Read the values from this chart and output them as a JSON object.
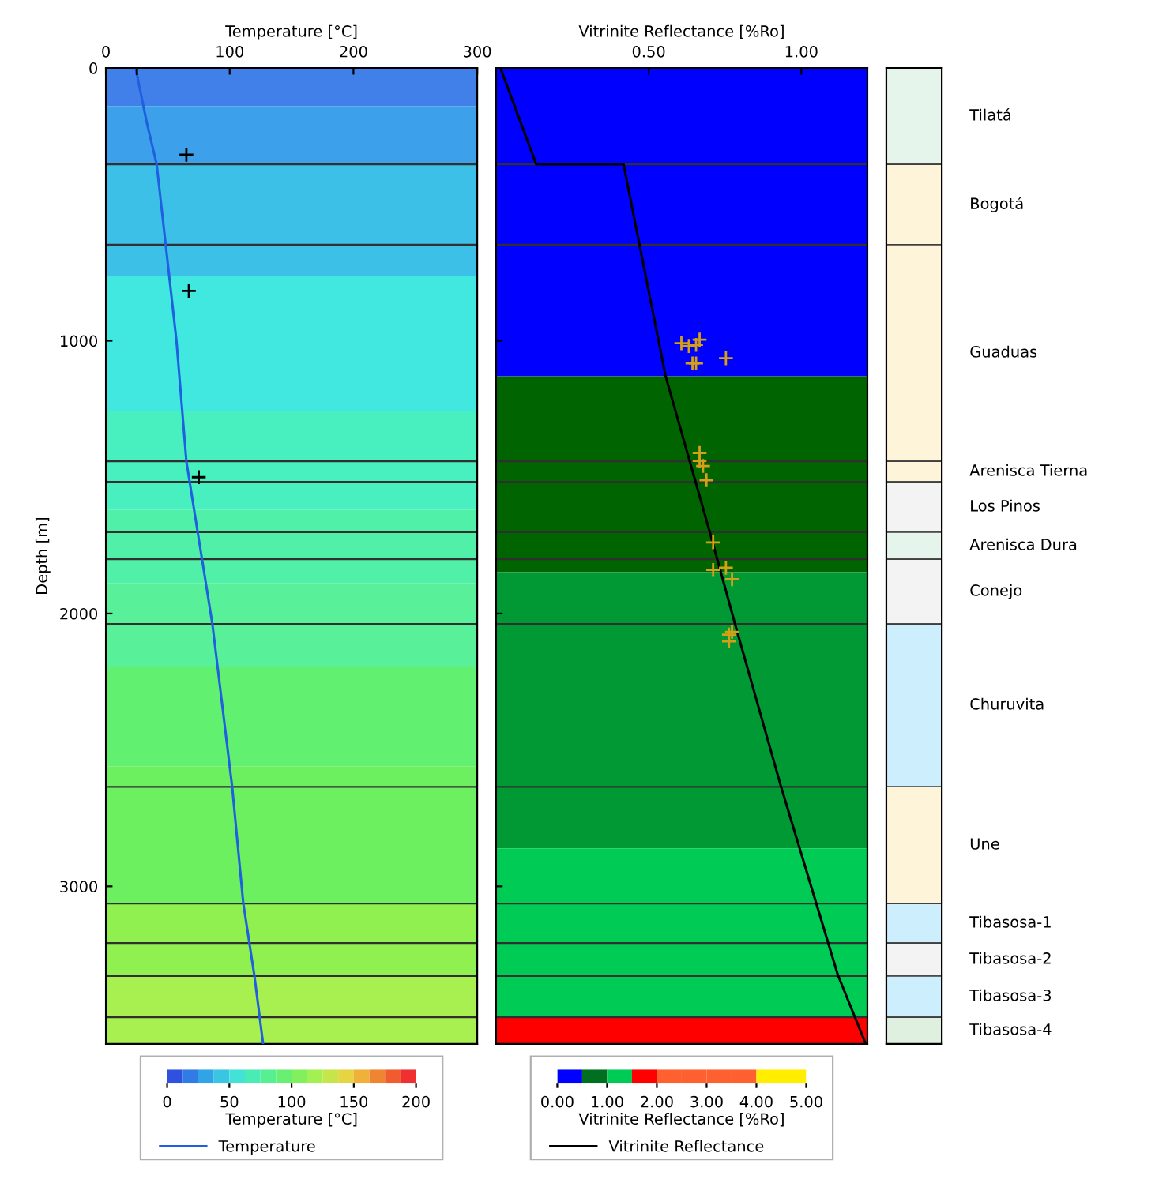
{
  "chart_data": [
    {
      "type": "line",
      "xlabel": "Temperature [°C]",
      "ylabel": "Depth [m]",
      "xlim": [
        0,
        300
      ],
      "xticks": [
        0,
        100,
        200,
        300
      ],
      "ylim": [
        3578,
        0
      ],
      "yticks": [
        0,
        1000,
        2000,
        3000
      ],
      "grid": false,
      "legend": "bottom",
      "clabel": "Temperature [°C]",
      "clim": [
        0,
        200
      ],
      "cticks": [
        0,
        50,
        100,
        150,
        200
      ],
      "colors": [
        "#3050e0",
        "#30a0e8",
        "#40e0e0",
        "#50f0a0",
        "#70f060",
        "#b0f050",
        "#f0d040",
        "#f08030",
        "#f03030"
      ],
      "series": [
        {
          "name": "Temperature",
          "type": "line",
          "color": "#1f5fe0",
          "marker": "none",
          "x": [
            24,
            33,
            41,
            57,
            65,
            86,
            102,
            111,
            120,
            127
          ],
          "values": [
            0,
            200,
            353,
            1000,
            1442,
            2038,
            2635,
            3063,
            3329,
            3578
          ]
        },
        {
          "type": "scatter",
          "color": "#000000",
          "marker": "cross",
          "x": [
            25,
            65,
            67,
            75
          ],
          "values": [
            0,
            318,
            817,
            1500
          ]
        }
      ],
      "bands": [
        {
          "axis": "y",
          "from": 0,
          "to": 139,
          "color": "#4080e8"
        },
        {
          "axis": "y",
          "from": 139,
          "to": 353,
          "color": "#3ca0ea"
        },
        {
          "axis": "y",
          "from": 353,
          "to": 764,
          "color": "#3cc0e8"
        },
        {
          "axis": "y",
          "from": 764,
          "to": 1257,
          "color": "#40e8e0"
        },
        {
          "axis": "y",
          "from": 1257,
          "to": 1620,
          "color": "#48f0c0"
        },
        {
          "axis": "y",
          "from": 1620,
          "to": 1888,
          "color": "#50f0a8"
        },
        {
          "axis": "y",
          "from": 1888,
          "to": 2195,
          "color": "#58f098"
        },
        {
          "axis": "y",
          "from": 2195,
          "to": 2560,
          "color": "#62f070"
        },
        {
          "axis": "y",
          "from": 2560,
          "to": 3063,
          "color": "#6cf060"
        },
        {
          "axis": "y",
          "from": 3063,
          "to": 3329,
          "color": "#90f050"
        },
        {
          "axis": "y",
          "from": 3329,
          "to": 3578,
          "color": "#a8f050"
        }
      ],
      "ref_lines": [
        {
          "axis": "y",
          "value": 353
        },
        {
          "axis": "y",
          "value": 648
        },
        {
          "axis": "y",
          "value": 1442
        },
        {
          "axis": "y",
          "value": 1517
        },
        {
          "axis": "y",
          "value": 1702
        },
        {
          "axis": "y",
          "value": 1801
        },
        {
          "axis": "y",
          "value": 2038
        },
        {
          "axis": "y",
          "value": 2635
        },
        {
          "axis": "y",
          "value": 3063
        },
        {
          "axis": "y",
          "value": 3208
        },
        {
          "axis": "y",
          "value": 3329
        },
        {
          "axis": "y",
          "value": 3480
        }
      ]
    },
    {
      "type": "line",
      "xlabel": "Vitrinite Reflectance [%Ro]",
      "log": "x",
      "xlim": [
        0.25,
        1.35
      ],
      "xticks": [
        {
          "value": 0.5,
          "label": "0.50"
        },
        {
          "value": 1.0,
          "label": "1.00"
        }
      ],
      "ylim": [
        3578,
        0
      ],
      "yticks": [
        0,
        1000,
        2000,
        3000
      ],
      "tick_labels": "x",
      "grid": false,
      "legend": "bottom",
      "clabel": "Vitrinite Reflectance [%Ro]",
      "clim": [
        0,
        5
      ],
      "cticks": [
        {
          "value": 0,
          "label": "0.00"
        },
        {
          "value": 1,
          "label": "1.00"
        },
        {
          "value": 2,
          "label": "2.00"
        },
        {
          "value": 3,
          "label": "3.00"
        },
        {
          "value": 4,
          "label": "4.00"
        },
        {
          "value": 5,
          "label": "5.00"
        }
      ],
      "colors": [
        "#0000ff",
        "#007020",
        "#00cc55",
        "#ff0000",
        "#ff6030",
        "#ff6030",
        "#ff6030",
        "#ff6030",
        "#ffee00",
        "#ffee00"
      ],
      "series": [
        {
          "name": "Vitrinite Reflectance",
          "type": "line",
          "color": "#000000",
          "marker": "none",
          "x": [
            0.255,
            0.3,
            0.446,
            0.54,
            0.66,
            0.74,
            0.91,
            1.18,
            1.34
          ],
          "values": [
            0,
            353,
            353,
            1130,
            1702,
            2038,
            2629,
            3324,
            3578
          ]
        },
        {
          "type": "scatter",
          "color": "#d4a017",
          "marker": "cross",
          "x": [
            0.58,
            0.6,
            0.62,
            0.63,
            0.61,
            0.62,
            0.71,
            0.63,
            0.63,
            0.64,
            0.65,
            0.67,
            0.67,
            0.71,
            0.73,
            0.72,
            0.73,
            0.72
          ],
          "values": [
            1009,
            1019,
            1015,
            996,
            1083,
            1083,
            1064,
            1411,
            1440,
            1459,
            1511,
            1739,
            1840,
            1832,
            1874,
            2077,
            2067,
            2102
          ]
        }
      ],
      "bands": [
        {
          "axis": "y",
          "from": 0,
          "to": 1130,
          "color": "#0000ff"
        },
        {
          "axis": "y",
          "from": 1130,
          "to": 1848,
          "color": "#006400"
        },
        {
          "axis": "y",
          "from": 1848,
          "to": 2861,
          "color": "#009933"
        },
        {
          "axis": "y",
          "from": 2861,
          "to": 3480,
          "color": "#00cc55"
        },
        {
          "axis": "y",
          "from": 3480,
          "to": 3578,
          "color": "#ff0000"
        }
      ],
      "ref_lines": [
        {
          "axis": "y",
          "value": 353
        },
        {
          "axis": "y",
          "value": 648
        },
        {
          "axis": "y",
          "value": 1442
        },
        {
          "axis": "y",
          "value": 1517
        },
        {
          "axis": "y",
          "value": 1702
        },
        {
          "axis": "y",
          "value": 1801
        },
        {
          "axis": "y",
          "value": 2038
        },
        {
          "axis": "y",
          "value": 2635
        },
        {
          "axis": "y",
          "value": 3063
        },
        {
          "axis": "y",
          "value": 3208
        },
        {
          "axis": "y",
          "value": 3329
        },
        {
          "axis": "y",
          "value": 3480
        }
      ]
    },
    {
      "type": "bar",
      "stacked": true,
      "categories": [
        null
      ],
      "ylim": [
        3578,
        0
      ],
      "tick_labels": false,
      "series": [
        {
          "name": "Tilatá",
          "color": "#e6f5ec",
          "values": [
            353
          ]
        },
        {
          "name": "Bogotá",
          "color": "#fdf4da",
          "values": [
            295
          ]
        },
        {
          "name": "Guaduas",
          "color": "#fdf4da",
          "values": [
            794
          ]
        },
        {
          "name": "Arenisca Tierna",
          "color": "#fdf4da",
          "values": [
            75
          ]
        },
        {
          "name": "Los Pinos",
          "color": "#f3f3f3",
          "values": [
            185
          ]
        },
        {
          "name": "Arenisca Dura",
          "color": "#e6f5ec",
          "values": [
            99
          ]
        },
        {
          "name": "Conejo",
          "color": "#f3f3f3",
          "values": [
            237
          ]
        },
        {
          "name": "Churuvita",
          "color": "#cdeefc",
          "values": [
            597
          ]
        },
        {
          "name": "Une",
          "color": "#fdf4da",
          "values": [
            428
          ]
        },
        {
          "name": "Tibasosa-1",
          "color": "#cdeefc",
          "values": [
            145
          ]
        },
        {
          "name": "Tibasosa-2",
          "color": "#f3f3f3",
          "values": [
            121
          ]
        },
        {
          "name": "Tibasosa-3",
          "color": "#cdeefc",
          "values": [
            151
          ]
        },
        {
          "name": "Tibasosa-4",
          "color": "#e0f0e0",
          "values": [
            98
          ]
        }
      ]
    }
  ]
}
